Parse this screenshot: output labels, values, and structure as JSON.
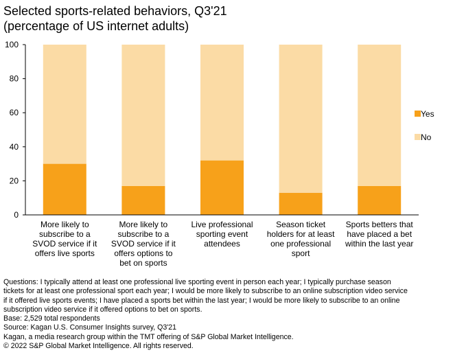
{
  "title_lines": [
    "Selected sports-related behaviors, Q3'21",
    "(percentage of US internet adults)"
  ],
  "chart_data": {
    "type": "bar",
    "stacked": true,
    "title": "Selected sports-related behaviors, Q3'21 (percentage of US internet adults)",
    "categories": [
      [
        "More likely to",
        "subscribe to a",
        "SVOD service if it",
        "offers live sports"
      ],
      [
        "More likely to",
        "subscribe to a",
        "SVOD service if it",
        "offers options to",
        "bet on sports"
      ],
      [
        "Live professional",
        "sporting event",
        "attendees"
      ],
      [
        "Season ticket",
        "holders for at least",
        "one professional",
        "sport"
      ],
      [
        "Sports betters that",
        "have placed a bet",
        "within the last year"
      ]
    ],
    "series": [
      {
        "name": "Yes",
        "color": "#F7A11A",
        "values": [
          30,
          17,
          32,
          13,
          17
        ]
      },
      {
        "name": "No",
        "color": "#FBDBA5",
        "values": [
          70,
          83,
          68,
          87,
          83
        ]
      }
    ],
    "legend_order": [
      "Yes",
      "No"
    ],
    "legend_position": "right",
    "ylim": [
      0,
      100
    ],
    "yticks": [
      "0",
      "20",
      "40",
      "60",
      "80",
      "100"
    ],
    "xlabel": "",
    "ylabel": "",
    "grid": false
  },
  "notes": [
    "Questions: I typically attend at least one professional live sporting event in person each year; I typically purchase season",
    "tickets for at least one professional sport each year; I would be more likely to subscribe to an online subscription video service",
    "if it offered live sports events; I have placed a sports bet within the last year; I would be more likely to subscribe to an online",
    "subscription video service if it offered options to bet on sports.",
    "Base: 2,529 total respondents",
    "Source: Kagan U.S. Consumer Insights survey, Q3'21",
    "Kagan, a media research group within the TMT offering of S&P Global Market Intelligence.",
    "© 2022 S&P Global Market Intelligence. All rights reserved."
  ]
}
